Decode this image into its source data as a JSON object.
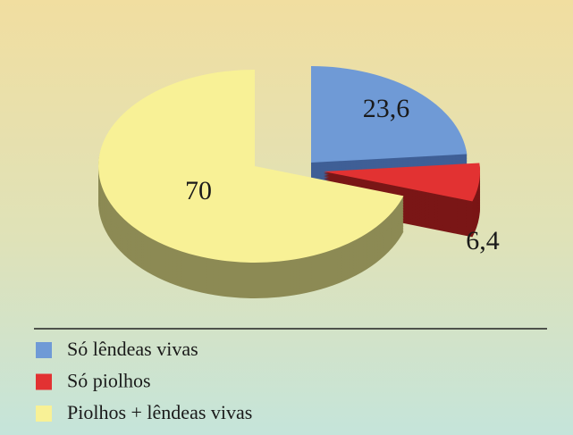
{
  "chart_data": {
    "type": "pie",
    "categories": [
      "Só lêndeas vivas",
      "Só piolhos",
      "Piolhos + lêndeas vivas"
    ],
    "values": [
      23.6,
      6.4,
      70
    ],
    "value_labels": [
      "23,6",
      "6,4",
      "70"
    ],
    "colors": [
      "#6f9ad6",
      "#e23232",
      "#f8f196"
    ],
    "side_colors": [
      "#3f5f96",
      "#7a1616",
      "#8c8a54"
    ]
  }
}
